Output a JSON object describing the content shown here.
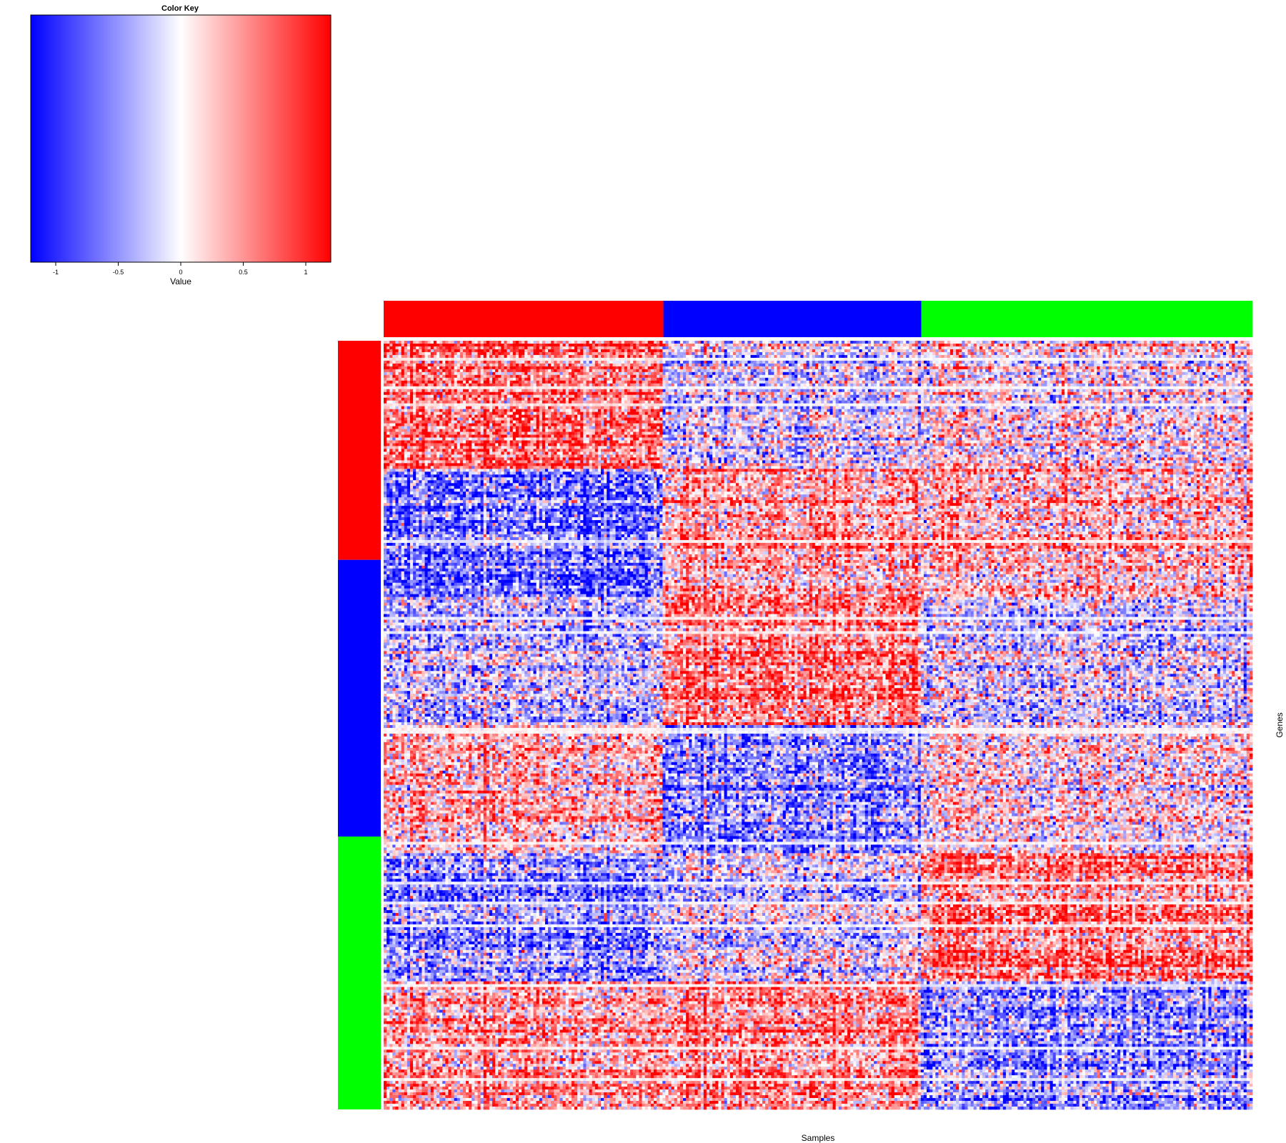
{
  "chart_data": {
    "type": "heatmap",
    "color_key": {
      "title": "Color Key",
      "xlabel": "Value",
      "range": [
        -1.2,
        1.2
      ],
      "ticks": [
        -1,
        -0.5,
        0,
        0.5,
        1
      ],
      "tick_labels": [
        "-1",
        "-0.5",
        "0",
        "0.5",
        "1"
      ],
      "colors": {
        "low": "#0000ff",
        "mid": "#ffffff",
        "high": "#ff0000"
      }
    },
    "xlabel": "Samples",
    "ylabel": "Genes",
    "column_groups": [
      {
        "color": "#ff0000",
        "fraction": 0.322
      },
      {
        "color": "#0000ff",
        "fraction": 0.297
      },
      {
        "color": "#00ff00",
        "fraction": 0.381
      }
    ],
    "row_groups": [
      {
        "color": "#ff0000",
        "fraction": 0.285
      },
      {
        "color": "#0000ff",
        "fraction": 0.36
      },
      {
        "color": "#00ff00",
        "fraction": 0.355
      }
    ],
    "block_pattern": [
      [
        0.6,
        -0.2,
        0.0
      ],
      [
        -0.6,
        0.5,
        0.4
      ],
      [
        -0.3,
        0.6,
        -0.2
      ],
      [
        0.3,
        -0.5,
        0.1
      ],
      [
        -0.5,
        -0.1,
        0.6
      ],
      [
        0.4,
        0.5,
        -0.5
      ]
    ]
  }
}
